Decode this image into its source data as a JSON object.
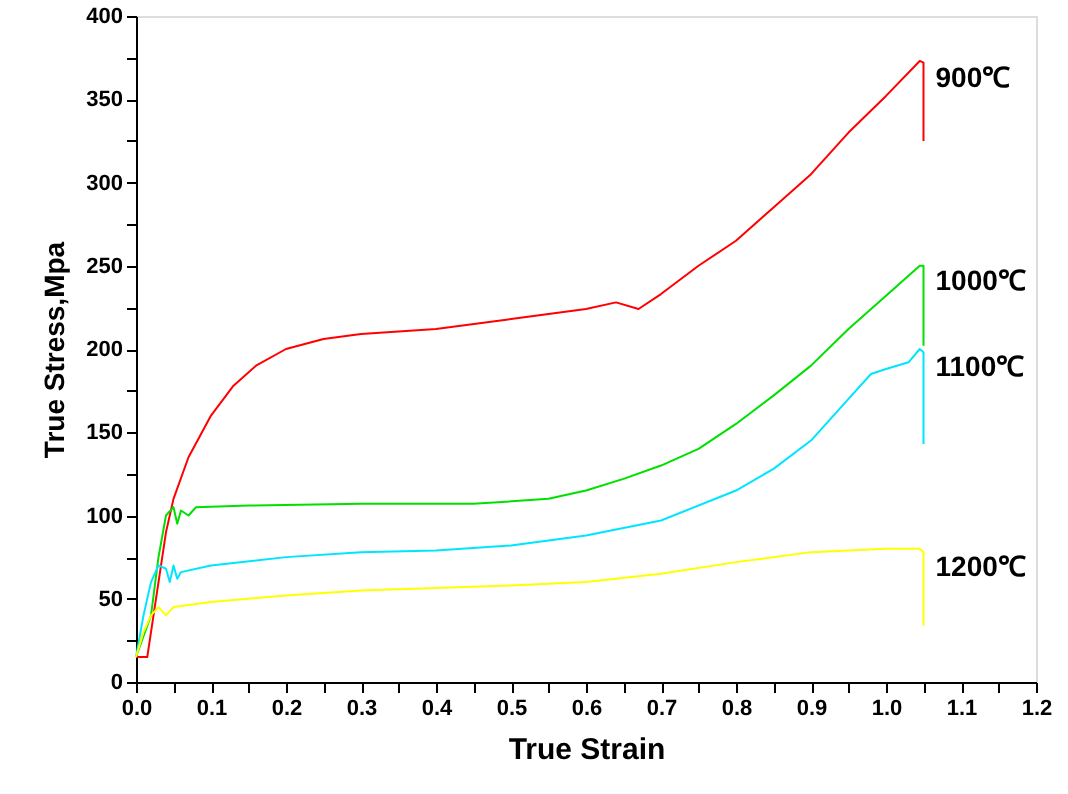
{
  "chart_data": {
    "type": "line",
    "xlabel": "True Strain",
    "ylabel": "True Stress,Mpa",
    "xlim": [
      0,
      1.2
    ],
    "ylim": [
      0,
      400
    ],
    "xticks": [
      {
        "value": 0,
        "label": "0.0"
      },
      {
        "value": 0.05,
        "label": null
      },
      0.1,
      {
        "value": 0.15,
        "label": null
      },
      0.2,
      {
        "value": 0.25,
        "label": null
      },
      0.3,
      {
        "value": 0.35,
        "label": null
      },
      0.4,
      {
        "value": 0.45,
        "label": null
      },
      0.5,
      {
        "value": 0.55,
        "label": null
      },
      0.6,
      {
        "value": 0.65,
        "label": null
      },
      0.7,
      {
        "value": 0.75,
        "label": null
      },
      0.8,
      {
        "value": 0.85,
        "label": null
      },
      0.9,
      {
        "value": 0.95,
        "label": null
      },
      {
        "value": 1,
        "label": "1.0"
      },
      {
        "value": 1.05,
        "label": null
      },
      1.1,
      {
        "value": 1.15,
        "label": null
      },
      1.2
    ],
    "yticks": [
      0,
      {
        "value": 25,
        "label": null
      },
      50,
      {
        "value": 75,
        "label": null
      },
      100,
      {
        "value": 125,
        "label": null
      },
      150,
      {
        "value": 175,
        "label": null
      },
      200,
      {
        "value": 225,
        "label": null
      },
      250,
      {
        "value": 275,
        "label": null
      },
      300,
      {
        "value": 325,
        "label": null
      },
      350,
      {
        "value": 375,
        "label": null
      },
      400
    ],
    "grid": false,
    "marker": "none",
    "line_style": "solid",
    "series": [
      {
        "name": "900℃",
        "color": "#ff0000",
        "x": [
          0,
          0.015,
          0.02,
          0.03,
          0.04,
          0.05,
          0.07,
          0.1,
          0.13,
          0.16,
          0.2,
          0.25,
          0.3,
          0.4,
          0.5,
          0.6,
          0.64,
          0.67,
          0.7,
          0.75,
          0.8,
          0.85,
          0.9,
          0.95,
          1.0,
          1.045,
          1.05,
          1.05
        ],
        "values": [
          15,
          15,
          30,
          60,
          90,
          110,
          135,
          160,
          178,
          190,
          200,
          206,
          209,
          212,
          218,
          224,
          228,
          224,
          233,
          250,
          265,
          285,
          305,
          330,
          352,
          373,
          372,
          325
        ]
      },
      {
        "name": "1000℃",
        "color": "#00e000",
        "x": [
          0,
          0.02,
          0.03,
          0.04,
          0.05,
          0.055,
          0.06,
          0.07,
          0.08,
          0.15,
          0.3,
          0.45,
          0.55,
          0.6,
          0.65,
          0.7,
          0.75,
          0.8,
          0.85,
          0.9,
          0.95,
          1.0,
          1.045,
          1.05,
          1.05
        ],
        "values": [
          15,
          40,
          75,
          100,
          105,
          95,
          103,
          100,
          105,
          106,
          107,
          107,
          110,
          115,
          122,
          130,
          140,
          155,
          172,
          190,
          212,
          232,
          250,
          250,
          202
        ]
      },
      {
        "name": "1100℃",
        "color": "#00e5ff",
        "x": [
          0,
          0.01,
          0.02,
          0.03,
          0.04,
          0.045,
          0.05,
          0.055,
          0.06,
          0.1,
          0.2,
          0.3,
          0.4,
          0.5,
          0.6,
          0.7,
          0.8,
          0.85,
          0.9,
          0.95,
          0.98,
          1.0,
          1.03,
          1.045,
          1.05,
          1.05
        ],
        "values": [
          15,
          40,
          60,
          70,
          68,
          60,
          70,
          62,
          66,
          70,
          75,
          78,
          79,
          82,
          88,
          97,
          115,
          128,
          145,
          170,
          185,
          188,
          192,
          200,
          198,
          143
        ]
      },
      {
        "name": "1200℃",
        "color": "#ffff00",
        "x": [
          0,
          0.01,
          0.02,
          0.03,
          0.04,
          0.05,
          0.1,
          0.2,
          0.3,
          0.5,
          0.6,
          0.7,
          0.8,
          0.9,
          1.0,
          1.045,
          1.05,
          1.05
        ],
        "values": [
          15,
          30,
          40,
          45,
          40,
          45,
          48,
          52,
          55,
          58,
          60,
          65,
          72,
          78,
          80,
          80,
          78,
          34
        ]
      }
    ]
  }
}
